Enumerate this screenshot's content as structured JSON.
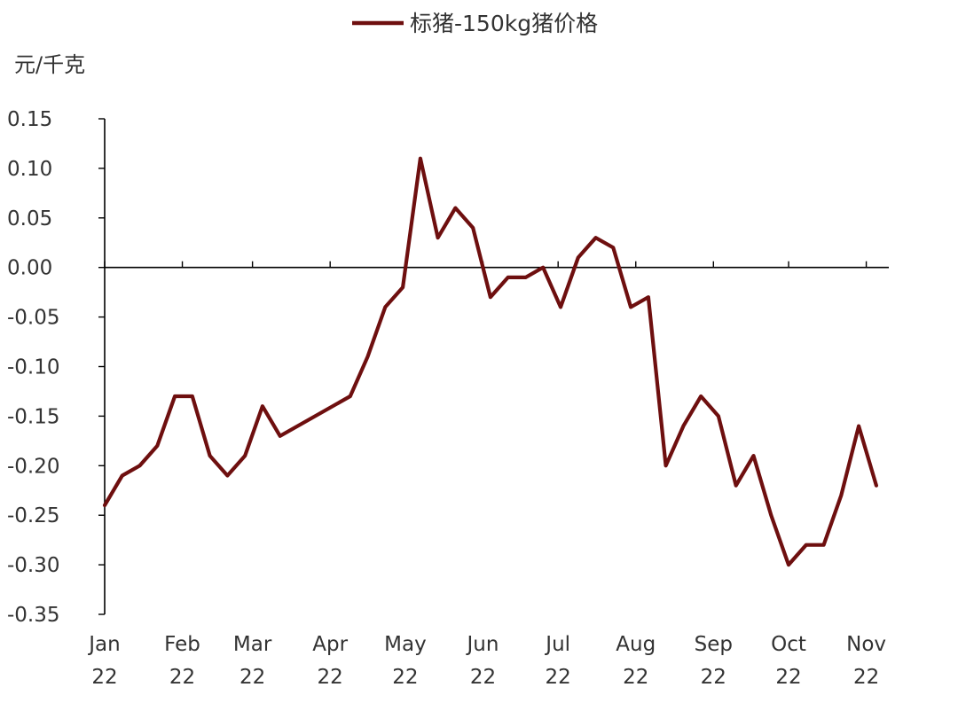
{
  "chart_data": {
    "type": "line",
    "title": "",
    "ylabel": "元/千克",
    "xlabel": "",
    "legend_position": "top-center",
    "grid": false,
    "ylim": [
      -0.35,
      0.15
    ],
    "yticks": [
      "0.15",
      "0.10",
      "0.05",
      "0.00",
      "-0.05",
      "-0.10",
      "-0.15",
      "-0.20",
      "-0.25",
      "-0.30",
      "-0.35"
    ],
    "ytick_values": [
      0.15,
      0.1,
      0.05,
      0.0,
      -0.05,
      -0.1,
      -0.15,
      -0.2,
      -0.25,
      -0.3,
      -0.35
    ],
    "xrange": [
      "2022-01-01",
      "2022-11-10"
    ],
    "month_ticks": [
      {
        "date": "2022-01-01",
        "month": "Jan",
        "year": "22"
      },
      {
        "date": "2022-02-01",
        "month": "Feb",
        "year": "22"
      },
      {
        "date": "2022-03-01",
        "month": "Mar",
        "year": "22"
      },
      {
        "date": "2022-04-01",
        "month": "Apr",
        "year": "22"
      },
      {
        "date": "2022-05-01",
        "month": "May",
        "year": "22"
      },
      {
        "date": "2022-06-01",
        "month": "Jun",
        "year": "22"
      },
      {
        "date": "2022-07-01",
        "month": "Jul",
        "year": "22"
      },
      {
        "date": "2022-08-01",
        "month": "Aug",
        "year": "22"
      },
      {
        "date": "2022-09-01",
        "month": "Sep",
        "year": "22"
      },
      {
        "date": "2022-10-01",
        "month": "Oct",
        "year": "22"
      },
      {
        "date": "2022-11-01",
        "month": "Nov",
        "year": "22"
      }
    ],
    "series": [
      {
        "name": "标猪-150kg猪价格",
        "color": "#6e0f0f",
        "points": [
          {
            "x": "2022-01-01",
            "y": -0.24
          },
          {
            "x": "2022-01-08",
            "y": -0.21
          },
          {
            "x": "2022-01-15",
            "y": -0.2
          },
          {
            "x": "2022-01-22",
            "y": -0.18
          },
          {
            "x": "2022-01-29",
            "y": -0.13
          },
          {
            "x": "2022-02-05",
            "y": -0.13
          },
          {
            "x": "2022-02-12",
            "y": -0.19
          },
          {
            "x": "2022-02-19",
            "y": -0.21
          },
          {
            "x": "2022-02-26",
            "y": -0.19
          },
          {
            "x": "2022-03-05",
            "y": -0.14
          },
          {
            "x": "2022-03-12",
            "y": -0.17
          },
          {
            "x": "2022-04-09",
            "y": -0.13
          },
          {
            "x": "2022-04-16",
            "y": -0.09
          },
          {
            "x": "2022-04-23",
            "y": -0.04
          },
          {
            "x": "2022-04-30",
            "y": -0.02
          },
          {
            "x": "2022-05-07",
            "y": 0.11
          },
          {
            "x": "2022-05-14",
            "y": 0.03
          },
          {
            "x": "2022-05-21",
            "y": 0.06
          },
          {
            "x": "2022-05-28",
            "y": 0.04
          },
          {
            "x": "2022-06-04",
            "y": -0.03
          },
          {
            "x": "2022-06-11",
            "y": -0.01
          },
          {
            "x": "2022-06-18",
            "y": -0.01
          },
          {
            "x": "2022-06-25",
            "y": 0.0
          },
          {
            "x": "2022-07-02",
            "y": -0.04
          },
          {
            "x": "2022-07-09",
            "y": 0.01
          },
          {
            "x": "2022-07-16",
            "y": 0.03
          },
          {
            "x": "2022-07-23",
            "y": 0.02
          },
          {
            "x": "2022-07-30",
            "y": -0.04
          },
          {
            "x": "2022-08-06",
            "y": -0.03
          },
          {
            "x": "2022-08-13",
            "y": -0.2
          },
          {
            "x": "2022-08-20",
            "y": -0.16
          },
          {
            "x": "2022-08-27",
            "y": -0.13
          },
          {
            "x": "2022-09-03",
            "y": -0.15
          },
          {
            "x": "2022-09-10",
            "y": -0.22
          },
          {
            "x": "2022-09-17",
            "y": -0.19
          },
          {
            "x": "2022-09-24",
            "y": -0.25
          },
          {
            "x": "2022-10-01",
            "y": -0.3
          },
          {
            "x": "2022-10-08",
            "y": -0.28
          },
          {
            "x": "2022-10-15",
            "y": -0.28
          },
          {
            "x": "2022-10-22",
            "y": -0.23
          },
          {
            "x": "2022-10-29",
            "y": -0.16
          },
          {
            "x": "2022-11-05",
            "y": -0.22
          }
        ]
      }
    ]
  }
}
